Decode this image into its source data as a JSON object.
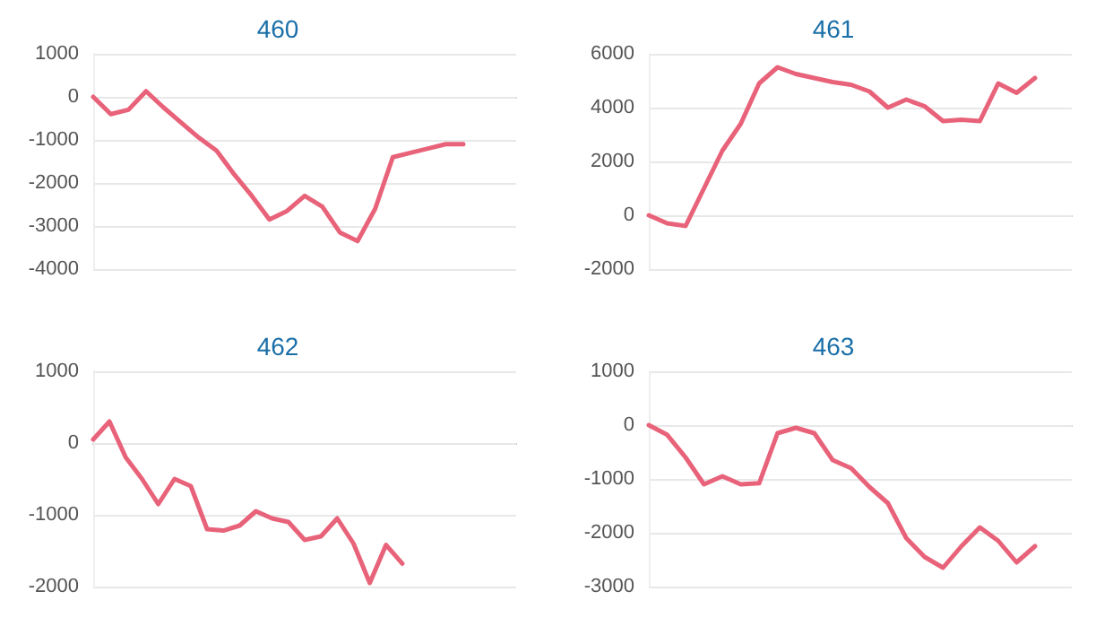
{
  "chart_data": [
    {
      "type": "line",
      "title": "460",
      "categories": [
        null,
        null,
        null,
        null,
        null,
        null,
        null,
        null,
        null,
        null,
        null,
        null,
        null,
        null,
        null,
        null,
        null,
        null,
        null,
        null,
        null,
        null,
        null,
        null,
        null
      ],
      "series": [
        {
          "color": "#e8637a",
          "values": [
            0,
            -400,
            -300,
            130,
            -250,
            -600,
            -950,
            -1250,
            -1800,
            -2300,
            -2850,
            -2650,
            -2300,
            -2550,
            -3150,
            -3350,
            -2600,
            -1400,
            -1300,
            -1200,
            -1100,
            -1100,
            null,
            null,
            null
          ]
        }
      ],
      "ylim": [
        -4000,
        1000
      ],
      "yticks": [
        -4000,
        -3000,
        -2000,
        -1000,
        0,
        1000
      ],
      "grid": "y",
      "tick_labels": "y",
      "marker": "none",
      "line_style": "solid"
    },
    {
      "type": "line",
      "title": "461",
      "categories": [
        null,
        null,
        null,
        null,
        null,
        null,
        null,
        null,
        null,
        null,
        null,
        null,
        null,
        null,
        null,
        null,
        null,
        null,
        null,
        null,
        null,
        null,
        null,
        null
      ],
      "series": [
        {
          "color": "#e8637a",
          "values": [
            0,
            -300,
            -400,
            1000,
            2400,
            3400,
            4900,
            5500,
            5250,
            5100,
            4950,
            4850,
            4600,
            4000,
            4300,
            4050,
            3500,
            3550,
            3500,
            4900,
            4550,
            5100,
            null,
            null
          ]
        }
      ],
      "ylim": [
        -2000,
        6000
      ],
      "yticks": [
        -2000,
        0,
        2000,
        4000,
        6000
      ],
      "grid": "y",
      "tick_labels": "y",
      "marker": "none",
      "line_style": "solid"
    },
    {
      "type": "line",
      "title": "462",
      "categories": [
        null,
        null,
        null,
        null,
        null,
        null,
        null,
        null,
        null,
        null,
        null,
        null,
        null,
        null,
        null,
        null,
        null,
        null,
        null,
        null,
        null,
        null,
        null,
        null,
        null,
        null,
        null
      ],
      "series": [
        {
          "color": "#e8637a",
          "values": [
            50,
            300,
            -200,
            -500,
            -850,
            -500,
            -600,
            -1200,
            -1220,
            -1150,
            -950,
            -1050,
            -1100,
            -1350,
            -1300,
            -1050,
            -1400,
            -1950,
            -1420,
            -1680,
            null,
            null,
            null,
            null,
            null,
            null,
            null
          ]
        }
      ],
      "ylim": [
        -2000,
        1000
      ],
      "yticks": [
        -2000,
        -1000,
        0,
        1000
      ],
      "grid": "y",
      "tick_labels": "y",
      "marker": "none",
      "line_style": "solid"
    },
    {
      "type": "line",
      "title": "463",
      "categories": [
        null,
        null,
        null,
        null,
        null,
        null,
        null,
        null,
        null,
        null,
        null,
        null,
        null,
        null,
        null,
        null,
        null,
        null,
        null,
        null,
        null,
        null,
        null,
        null
      ],
      "series": [
        {
          "color": "#e8637a",
          "values": [
            0,
            -180,
            -600,
            -1100,
            -950,
            -1100,
            -1080,
            -150,
            -50,
            -150,
            -650,
            -800,
            -1150,
            -1450,
            -2100,
            -2450,
            -2650,
            -2250,
            -1900,
            -2150,
            -2550,
            -2250,
            null,
            null
          ]
        }
      ],
      "ylim": [
        -3000,
        1000
      ],
      "yticks": [
        -3000,
        -2000,
        -1000,
        0,
        1000
      ],
      "grid": "y",
      "tick_labels": "y",
      "marker": "none",
      "line_style": "solid"
    }
  ]
}
